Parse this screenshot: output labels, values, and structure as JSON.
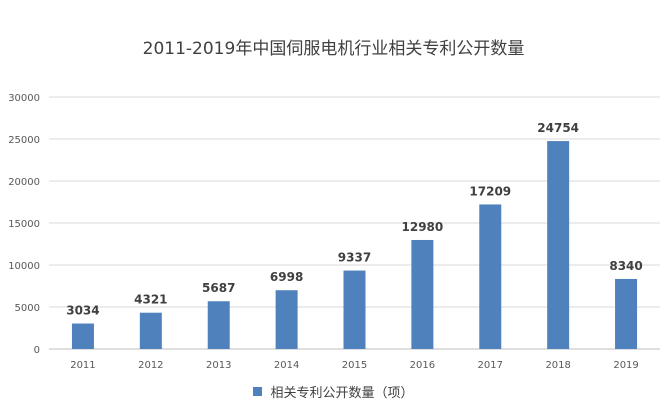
{
  "chart_data": {
    "type": "bar",
    "title": "2011-2019年中国伺服电机行业相关专利公开数量",
    "xlabel": "",
    "ylabel": "",
    "categories": [
      "2011",
      "2012",
      "2013",
      "2014",
      "2015",
      "2016",
      "2017",
      "2018",
      "2019"
    ],
    "series": [
      {
        "name": "相关专利公开数量（项）",
        "values": [
          3034,
          4321,
          5687,
          6998,
          9337,
          12980,
          17209,
          24754,
          8340
        ],
        "color": "#4f81bd"
      }
    ],
    "ylim": [
      0,
      30000
    ],
    "yticks": [
      0,
      5000,
      10000,
      15000,
      20000,
      25000,
      30000
    ],
    "grid": true,
    "legend": "bottom",
    "data_labels": true
  }
}
